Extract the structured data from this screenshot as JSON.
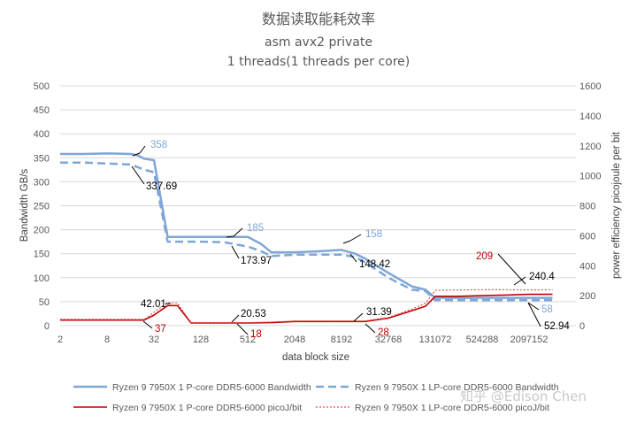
{
  "chart_data": {
    "type": "line",
    "title": "数据读取能耗效率",
    "subtitle_1": "asm avx2 private",
    "subtitle_2": "1 threads(1 threads per core)",
    "xlabel": "data block size",
    "ylabel_left": "Bandwidth GB/s",
    "ylabel_right": "power efficiency picojoule per bit",
    "x_tick_labels": [
      "2",
      "8",
      "32",
      "128",
      "512",
      "2048",
      "8192",
      "32768",
      "131072",
      "524288",
      "2097152"
    ],
    "x_scale": "log2",
    "xlim": [
      2,
      8388608
    ],
    "ylim_left": [
      0,
      500
    ],
    "ylim_right": [
      0,
      1600
    ],
    "y_ticks_left": [
      0,
      50,
      100,
      150,
      200,
      250,
      300,
      350,
      400,
      450,
      500
    ],
    "y_ticks_right": [
      0,
      200,
      400,
      600,
      800,
      1000,
      1200,
      1400,
      1600
    ],
    "grid": "horizontal",
    "legend_position": "bottom",
    "series": [
      {
        "name": "Ryzen 9 7950X 1 P-core DDR5-6000 Bandwidth",
        "axis": "left",
        "color": "#7ea6d6",
        "dash": "solid",
        "x": [
          2,
          4,
          8,
          16,
          20,
          24,
          32,
          48,
          64,
          128,
          256,
          384,
          512,
          768,
          1024,
          2048,
          4096,
          8192,
          12288,
          16384,
          32768,
          65536,
          98304,
          131072,
          262144,
          524288,
          1048576,
          2097152,
          4194304
        ],
        "y": [
          358,
          358,
          359,
          358,
          355,
          348,
          345,
          185,
          185,
          185,
          185,
          185,
          185,
          170,
          153,
          153,
          155,
          158,
          150,
          140,
          110,
          82,
          75,
          58,
          58,
          58,
          58,
          58,
          58
        ]
      },
      {
        "name": "Ryzen 9 7950X 1 LP-core DDR5-6000 Bandwidth",
        "axis": "left",
        "color": "#7ea6d6",
        "dash": "dashed",
        "x": [
          2,
          4,
          8,
          16,
          20,
          24,
          32,
          48,
          64,
          128,
          256,
          512,
          768,
          1024,
          2048,
          4096,
          8192,
          12288,
          16384,
          32768,
          65536,
          98304,
          131072,
          262144,
          524288,
          1048576,
          2097152,
          4194304
        ],
        "y": [
          340,
          340,
          338,
          336,
          330,
          325,
          320,
          175,
          175,
          175,
          174,
          165,
          155,
          145,
          148,
          148,
          148,
          143,
          132,
          100,
          75,
          72,
          53,
          53,
          53,
          53,
          53,
          53
        ]
      },
      {
        "name": "Ryzen 9 7950X 1 P-core DDR5-6000 picoJ/bit",
        "axis": "right",
        "color": "#c00000",
        "dash": "solid",
        "x": [
          2,
          4,
          8,
          16,
          24,
          32,
          48,
          64,
          96,
          128,
          256,
          512,
          1024,
          2048,
          4096,
          8192,
          16384,
          32768,
          65536,
          98304,
          131072,
          262144,
          524288,
          1048576,
          2097152,
          4194304
        ],
        "y": [
          37,
          37,
          37,
          37,
          37,
          70,
          134,
          134,
          18,
          18,
          18,
          18,
          20,
          28,
          28,
          28,
          28,
          50,
          100,
          130,
          196,
          196,
          200,
          204,
          209,
          209
        ]
      },
      {
        "name": "Ryzen 9 7950X 1 LP-core DDR5-6000 picoJ/bit",
        "axis": "right",
        "color": "#e05050",
        "dash": "dotted",
        "x": [
          2,
          4,
          8,
          16,
          24,
          32,
          48,
          64,
          96,
          128,
          256,
          512,
          1024,
          2048,
          4096,
          8192,
          16384,
          32768,
          65536,
          98304,
          131072,
          262144,
          524288,
          1048576,
          2097152,
          4194304
        ],
        "y": [
          42,
          42,
          42,
          42,
          42,
          90,
          152,
          152,
          20,
          20,
          20,
          20,
          25,
          31,
          31,
          31,
          31,
          55,
          110,
          150,
          236,
          238,
          240,
          240,
          238,
          240
        ]
      }
    ],
    "annotations": [
      {
        "text": "358",
        "color": "#7ea6d6"
      },
      {
        "text": "337.69",
        "color": "#000000"
      },
      {
        "text": "185",
        "color": "#7ea6d6"
      },
      {
        "text": "173.97",
        "color": "#000000"
      },
      {
        "text": "158",
        "color": "#7ea6d6"
      },
      {
        "text": "148.42",
        "color": "#000000"
      },
      {
        "text": "42.01",
        "color": "#000000"
      },
      {
        "text": "37",
        "color": "#c00000"
      },
      {
        "text": "20.53",
        "color": "#000000"
      },
      {
        "text": "18",
        "color": "#c00000"
      },
      {
        "text": "31.39",
        "color": "#000000"
      },
      {
        "text": "28",
        "color": "#c00000"
      },
      {
        "text": "209",
        "color": "#c00000"
      },
      {
        "text": "240.4",
        "color": "#000000"
      },
      {
        "text": "58",
        "color": "#7ea6d6"
      },
      {
        "text": "52.94",
        "color": "#000000"
      }
    ]
  },
  "watermark": "知乎 @Edison Chen"
}
